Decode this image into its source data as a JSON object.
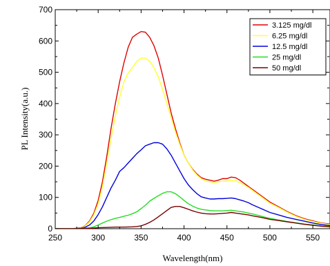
{
  "chart_data": {
    "type": "line",
    "title": "",
    "xlabel": "Wavelength(nm)",
    "ylabel": "PL Intensity(a.u.)",
    "xlim": [
      250,
      570
    ],
    "ylim": [
      0,
      700
    ],
    "xticks": [
      250,
      300,
      350,
      400,
      450,
      500,
      550
    ],
    "yticks": [
      0,
      100,
      200,
      300,
      400,
      500,
      600,
      700
    ],
    "legend_position": "top-right",
    "grid": false,
    "series": [
      {
        "name": "3.125 mg/dl",
        "color": "#e00000",
        "points": [
          [
            250,
            0
          ],
          [
            270,
            0
          ],
          [
            280,
            3
          ],
          [
            285,
            10
          ],
          [
            290,
            25
          ],
          [
            295,
            50
          ],
          [
            300,
            90
          ],
          [
            305,
            150
          ],
          [
            310,
            230
          ],
          [
            315,
            320
          ],
          [
            320,
            400
          ],
          [
            325,
            470
          ],
          [
            330,
            530
          ],
          [
            335,
            580
          ],
          [
            340,
            612
          ],
          [
            345,
            622
          ],
          [
            350,
            630
          ],
          [
            355,
            628
          ],
          [
            360,
            612
          ],
          [
            365,
            585
          ],
          [
            370,
            545
          ],
          [
            375,
            490
          ],
          [
            380,
            430
          ],
          [
            385,
            370
          ],
          [
            390,
            320
          ],
          [
            395,
            275
          ],
          [
            400,
            235
          ],
          [
            405,
            210
          ],
          [
            410,
            190
          ],
          [
            415,
            175
          ],
          [
            420,
            163
          ],
          [
            425,
            158
          ],
          [
            430,
            155
          ],
          [
            435,
            152
          ],
          [
            440,
            155
          ],
          [
            445,
            160
          ],
          [
            450,
            160
          ],
          [
            455,
            165
          ],
          [
            460,
            163
          ],
          [
            465,
            155
          ],
          [
            470,
            145
          ],
          [
            475,
            135
          ],
          [
            480,
            125
          ],
          [
            490,
            105
          ],
          [
            500,
            85
          ],
          [
            510,
            70
          ],
          [
            520,
            55
          ],
          [
            530,
            42
          ],
          [
            540,
            32
          ],
          [
            550,
            25
          ],
          [
            560,
            18
          ],
          [
            570,
            15
          ]
        ]
      },
      {
        "name": "6.25 mg/dl",
        "color": "#ffff33",
        "points": [
          [
            250,
            0
          ],
          [
            270,
            0
          ],
          [
            280,
            3
          ],
          [
            285,
            9
          ],
          [
            290,
            22
          ],
          [
            295,
            45
          ],
          [
            300,
            80
          ],
          [
            305,
            135
          ],
          [
            310,
            210
          ],
          [
            315,
            290
          ],
          [
            320,
            360
          ],
          [
            325,
            420
          ],
          [
            330,
            470
          ],
          [
            335,
            498
          ],
          [
            340,
            515
          ],
          [
            345,
            535
          ],
          [
            350,
            545
          ],
          [
            355,
            545
          ],
          [
            360,
            535
          ],
          [
            365,
            515
          ],
          [
            370,
            485
          ],
          [
            375,
            445
          ],
          [
            380,
            400
          ],
          [
            385,
            355
          ],
          [
            390,
            310
          ],
          [
            395,
            270
          ],
          [
            400,
            235
          ],
          [
            405,
            210
          ],
          [
            410,
            188
          ],
          [
            415,
            172
          ],
          [
            420,
            160
          ],
          [
            425,
            153
          ],
          [
            430,
            150
          ],
          [
            435,
            148
          ],
          [
            440,
            150
          ],
          [
            445,
            152
          ],
          [
            450,
            152
          ],
          [
            455,
            155
          ],
          [
            460,
            153
          ],
          [
            465,
            147
          ],
          [
            470,
            140
          ],
          [
            475,
            132
          ],
          [
            480,
            122
          ],
          [
            490,
            102
          ],
          [
            500,
            82
          ],
          [
            510,
            68
          ],
          [
            520,
            53
          ],
          [
            530,
            40
          ],
          [
            540,
            30
          ],
          [
            550,
            23
          ],
          [
            560,
            17
          ],
          [
            570,
            13
          ]
        ]
      },
      {
        "name": "12.5 mg/dl",
        "color": "#0000dd",
        "points": [
          [
            250,
            0
          ],
          [
            270,
            0
          ],
          [
            280,
            2
          ],
          [
            285,
            5
          ],
          [
            290,
            12
          ],
          [
            295,
            25
          ],
          [
            300,
            45
          ],
          [
            305,
            70
          ],
          [
            310,
            100
          ],
          [
            315,
            130
          ],
          [
            320,
            155
          ],
          [
            325,
            183
          ],
          [
            330,
            195
          ],
          [
            335,
            210
          ],
          [
            340,
            225
          ],
          [
            345,
            240
          ],
          [
            350,
            252
          ],
          [
            355,
            265
          ],
          [
            360,
            270
          ],
          [
            365,
            275
          ],
          [
            370,
            275
          ],
          [
            375,
            270
          ],
          [
            380,
            255
          ],
          [
            385,
            235
          ],
          [
            390,
            210
          ],
          [
            395,
            185
          ],
          [
            400,
            160
          ],
          [
            405,
            140
          ],
          [
            410,
            125
          ],
          [
            415,
            112
          ],
          [
            420,
            102
          ],
          [
            425,
            98
          ],
          [
            430,
            95
          ],
          [
            435,
            95
          ],
          [
            440,
            96
          ],
          [
            445,
            96
          ],
          [
            450,
            97
          ],
          [
            455,
            98
          ],
          [
            460,
            96
          ],
          [
            465,
            92
          ],
          [
            470,
            88
          ],
          [
            475,
            83
          ],
          [
            480,
            76
          ],
          [
            490,
            64
          ],
          [
            500,
            52
          ],
          [
            510,
            44
          ],
          [
            520,
            36
          ],
          [
            530,
            30
          ],
          [
            540,
            24
          ],
          [
            550,
            18
          ],
          [
            560,
            13
          ],
          [
            570,
            10
          ]
        ]
      },
      {
        "name": "25 mg/dl",
        "color": "#22dd22",
        "points": [
          [
            250,
            0
          ],
          [
            270,
            0
          ],
          [
            280,
            1
          ],
          [
            290,
            3
          ],
          [
            295,
            6
          ],
          [
            300,
            12
          ],
          [
            305,
            18
          ],
          [
            310,
            24
          ],
          [
            315,
            29
          ],
          [
            320,
            33
          ],
          [
            325,
            36
          ],
          [
            330,
            40
          ],
          [
            335,
            43
          ],
          [
            340,
            48
          ],
          [
            345,
            54
          ],
          [
            350,
            64
          ],
          [
            355,
            75
          ],
          [
            360,
            88
          ],
          [
            365,
            97
          ],
          [
            370,
            105
          ],
          [
            375,
            113
          ],
          [
            380,
            118
          ],
          [
            385,
            118
          ],
          [
            390,
            112
          ],
          [
            395,
            102
          ],
          [
            400,
            90
          ],
          [
            405,
            80
          ],
          [
            410,
            72
          ],
          [
            415,
            66
          ],
          [
            420,
            62
          ],
          [
            425,
            60
          ],
          [
            430,
            58
          ],
          [
            435,
            57
          ],
          [
            440,
            57
          ],
          [
            445,
            57
          ],
          [
            450,
            58
          ],
          [
            455,
            59
          ],
          [
            460,
            57
          ],
          [
            465,
            55
          ],
          [
            470,
            53
          ],
          [
            475,
            50
          ],
          [
            480,
            47
          ],
          [
            490,
            40
          ],
          [
            500,
            33
          ],
          [
            510,
            28
          ],
          [
            520,
            23
          ],
          [
            530,
            19
          ],
          [
            540,
            15
          ],
          [
            550,
            12
          ],
          [
            560,
            9
          ],
          [
            570,
            7
          ]
        ]
      },
      {
        "name": "50 mg/dl",
        "color": "#770000",
        "points": [
          [
            250,
            0
          ],
          [
            270,
            0
          ],
          [
            290,
            1
          ],
          [
            300,
            3
          ],
          [
            310,
            4
          ],
          [
            320,
            5
          ],
          [
            330,
            5
          ],
          [
            340,
            6
          ],
          [
            345,
            7
          ],
          [
            350,
            9
          ],
          [
            355,
            14
          ],
          [
            360,
            20
          ],
          [
            365,
            28
          ],
          [
            370,
            38
          ],
          [
            375,
            48
          ],
          [
            380,
            58
          ],
          [
            385,
            68
          ],
          [
            390,
            71
          ],
          [
            395,
            71
          ],
          [
            400,
            67
          ],
          [
            405,
            62
          ],
          [
            410,
            57
          ],
          [
            415,
            53
          ],
          [
            420,
            50
          ],
          [
            425,
            48
          ],
          [
            430,
            47
          ],
          [
            435,
            47
          ],
          [
            440,
            48
          ],
          [
            445,
            49
          ],
          [
            450,
            50
          ],
          [
            455,
            52
          ],
          [
            460,
            50
          ],
          [
            465,
            48
          ],
          [
            470,
            46
          ],
          [
            475,
            44
          ],
          [
            480,
            41
          ],
          [
            490,
            36
          ],
          [
            500,
            30
          ],
          [
            510,
            26
          ],
          [
            520,
            22
          ],
          [
            530,
            18
          ],
          [
            540,
            14
          ],
          [
            550,
            11
          ],
          [
            560,
            8
          ],
          [
            570,
            6
          ]
        ]
      }
    ]
  }
}
